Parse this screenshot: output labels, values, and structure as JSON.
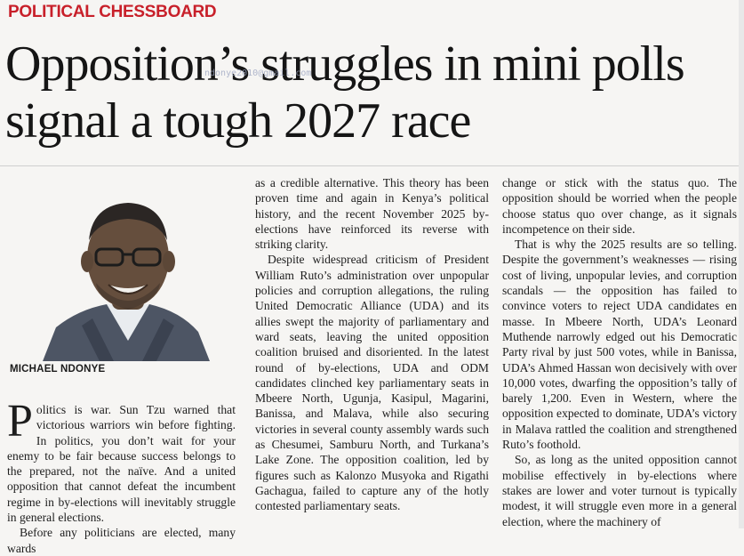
{
  "kicker": "POLITICAL CHESSBOARD",
  "headline": "Opposition’s struggles in mini polls signal a tough 2027 race",
  "watermark": "ndonye2010@gmail.com",
  "byline": "MICHAEL NDONYE",
  "column1": {
    "dropcap": "P",
    "p1": "olitics is war. Sun Tzu warned that victorious warriors win before fighting. In politics, you don’t wait for your enemy to be fair because success belongs to the prepared, not the naïve. And a united opposition that cannot defeat the incumbent regime in by-elections will inevitably struggle in general elections.",
    "p2": "Before any politicians are elected, many wards"
  },
  "column2": {
    "p1": "as a credible alternative. This theory has been proven time and again in Kenya’s political history, and the recent November 2025 by-elections have reinforced its reverse with striking clarity.",
    "p2": "Despite widespread criticism of President William Ruto’s administration over unpopular policies and corruption allegations, the ruling United Democratic Alliance (UDA) and its allies swept the majority of parliamentary and ward seats, leaving the united opposition coalition bruised and disoriented. In the latest round of by-elections, UDA and ODM candidates clinched key parliamentary seats in Mbeere North, Ugunja, Kasipul, Magarini, Banissa, and Malava, while also securing victories in several county assembly wards such as Chesumei, Samburu North, and Turkana’s Lake Zone. The opposition coalition, led by figures such as Kalonzo Musyoka and Rigathi Gachagua, failed to capture any of the hotly contested parliamentary seats."
  },
  "column3": {
    "p1": "change or stick with the status quo. The opposition should be worried when the people choose status quo over change, as it signals incompetence on their side.",
    "p2": "That is why the 2025 results are so telling. Despite the government’s weaknesses — rising cost of living, unpopular levies, and corruption scandals — the opposition has failed to convince voters to reject UDA candidates en masse. In Mbeere North, UDA’s Leonard Muthende narrowly edged out his Democratic Party rival by just 500 votes, while in Banissa, UDA’s Ahmed Hassan won decisively with over 10,000 votes, dwarfing the opposition’s tally of barely 1,200. Even in Western, where the opposition expected to dominate, UDA’s victory in Malava rattled the coalition and strengthened Ruto’s foothold.",
    "p3": "So, as long as the united opposition cannot mobilise effectively in by-elections where stakes are lower and voter turnout is typically modest, it will struggle even more in a general election, where the machinery of"
  }
}
